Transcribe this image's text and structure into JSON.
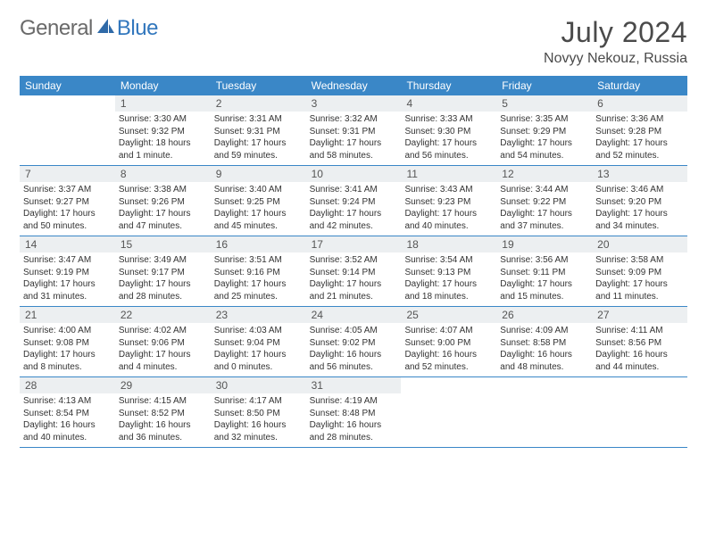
{
  "logo": {
    "gray": "General",
    "blue": "Blue"
  },
  "title": "July 2024",
  "location": "Novyy Nekouz, Russia",
  "colors": {
    "header_bg": "#3a87c7",
    "header_text": "#ffffff",
    "daynum_bg": "#eceff1",
    "border": "#3a87c7",
    "logo_gray": "#6a6a6a",
    "logo_blue": "#3277bd"
  },
  "day_headers": [
    "Sunday",
    "Monday",
    "Tuesday",
    "Wednesday",
    "Thursday",
    "Friday",
    "Saturday"
  ],
  "weeks": [
    [
      {
        "n": "",
        "sr": "",
        "ss": "",
        "dl": ""
      },
      {
        "n": "1",
        "sr": "Sunrise: 3:30 AM",
        "ss": "Sunset: 9:32 PM",
        "dl": "Daylight: 18 hours and 1 minute."
      },
      {
        "n": "2",
        "sr": "Sunrise: 3:31 AM",
        "ss": "Sunset: 9:31 PM",
        "dl": "Daylight: 17 hours and 59 minutes."
      },
      {
        "n": "3",
        "sr": "Sunrise: 3:32 AM",
        "ss": "Sunset: 9:31 PM",
        "dl": "Daylight: 17 hours and 58 minutes."
      },
      {
        "n": "4",
        "sr": "Sunrise: 3:33 AM",
        "ss": "Sunset: 9:30 PM",
        "dl": "Daylight: 17 hours and 56 minutes."
      },
      {
        "n": "5",
        "sr": "Sunrise: 3:35 AM",
        "ss": "Sunset: 9:29 PM",
        "dl": "Daylight: 17 hours and 54 minutes."
      },
      {
        "n": "6",
        "sr": "Sunrise: 3:36 AM",
        "ss": "Sunset: 9:28 PM",
        "dl": "Daylight: 17 hours and 52 minutes."
      }
    ],
    [
      {
        "n": "7",
        "sr": "Sunrise: 3:37 AM",
        "ss": "Sunset: 9:27 PM",
        "dl": "Daylight: 17 hours and 50 minutes."
      },
      {
        "n": "8",
        "sr": "Sunrise: 3:38 AM",
        "ss": "Sunset: 9:26 PM",
        "dl": "Daylight: 17 hours and 47 minutes."
      },
      {
        "n": "9",
        "sr": "Sunrise: 3:40 AM",
        "ss": "Sunset: 9:25 PM",
        "dl": "Daylight: 17 hours and 45 minutes."
      },
      {
        "n": "10",
        "sr": "Sunrise: 3:41 AM",
        "ss": "Sunset: 9:24 PM",
        "dl": "Daylight: 17 hours and 42 minutes."
      },
      {
        "n": "11",
        "sr": "Sunrise: 3:43 AM",
        "ss": "Sunset: 9:23 PM",
        "dl": "Daylight: 17 hours and 40 minutes."
      },
      {
        "n": "12",
        "sr": "Sunrise: 3:44 AM",
        "ss": "Sunset: 9:22 PM",
        "dl": "Daylight: 17 hours and 37 minutes."
      },
      {
        "n": "13",
        "sr": "Sunrise: 3:46 AM",
        "ss": "Sunset: 9:20 PM",
        "dl": "Daylight: 17 hours and 34 minutes."
      }
    ],
    [
      {
        "n": "14",
        "sr": "Sunrise: 3:47 AM",
        "ss": "Sunset: 9:19 PM",
        "dl": "Daylight: 17 hours and 31 minutes."
      },
      {
        "n": "15",
        "sr": "Sunrise: 3:49 AM",
        "ss": "Sunset: 9:17 PM",
        "dl": "Daylight: 17 hours and 28 minutes."
      },
      {
        "n": "16",
        "sr": "Sunrise: 3:51 AM",
        "ss": "Sunset: 9:16 PM",
        "dl": "Daylight: 17 hours and 25 minutes."
      },
      {
        "n": "17",
        "sr": "Sunrise: 3:52 AM",
        "ss": "Sunset: 9:14 PM",
        "dl": "Daylight: 17 hours and 21 minutes."
      },
      {
        "n": "18",
        "sr": "Sunrise: 3:54 AM",
        "ss": "Sunset: 9:13 PM",
        "dl": "Daylight: 17 hours and 18 minutes."
      },
      {
        "n": "19",
        "sr": "Sunrise: 3:56 AM",
        "ss": "Sunset: 9:11 PM",
        "dl": "Daylight: 17 hours and 15 minutes."
      },
      {
        "n": "20",
        "sr": "Sunrise: 3:58 AM",
        "ss": "Sunset: 9:09 PM",
        "dl": "Daylight: 17 hours and 11 minutes."
      }
    ],
    [
      {
        "n": "21",
        "sr": "Sunrise: 4:00 AM",
        "ss": "Sunset: 9:08 PM",
        "dl": "Daylight: 17 hours and 8 minutes."
      },
      {
        "n": "22",
        "sr": "Sunrise: 4:02 AM",
        "ss": "Sunset: 9:06 PM",
        "dl": "Daylight: 17 hours and 4 minutes."
      },
      {
        "n": "23",
        "sr": "Sunrise: 4:03 AM",
        "ss": "Sunset: 9:04 PM",
        "dl": "Daylight: 17 hours and 0 minutes."
      },
      {
        "n": "24",
        "sr": "Sunrise: 4:05 AM",
        "ss": "Sunset: 9:02 PM",
        "dl": "Daylight: 16 hours and 56 minutes."
      },
      {
        "n": "25",
        "sr": "Sunrise: 4:07 AM",
        "ss": "Sunset: 9:00 PM",
        "dl": "Daylight: 16 hours and 52 minutes."
      },
      {
        "n": "26",
        "sr": "Sunrise: 4:09 AM",
        "ss": "Sunset: 8:58 PM",
        "dl": "Daylight: 16 hours and 48 minutes."
      },
      {
        "n": "27",
        "sr": "Sunrise: 4:11 AM",
        "ss": "Sunset: 8:56 PM",
        "dl": "Daylight: 16 hours and 44 minutes."
      }
    ],
    [
      {
        "n": "28",
        "sr": "Sunrise: 4:13 AM",
        "ss": "Sunset: 8:54 PM",
        "dl": "Daylight: 16 hours and 40 minutes."
      },
      {
        "n": "29",
        "sr": "Sunrise: 4:15 AM",
        "ss": "Sunset: 8:52 PM",
        "dl": "Daylight: 16 hours and 36 minutes."
      },
      {
        "n": "30",
        "sr": "Sunrise: 4:17 AM",
        "ss": "Sunset: 8:50 PM",
        "dl": "Daylight: 16 hours and 32 minutes."
      },
      {
        "n": "31",
        "sr": "Sunrise: 4:19 AM",
        "ss": "Sunset: 8:48 PM",
        "dl": "Daylight: 16 hours and 28 minutes."
      },
      {
        "n": "",
        "sr": "",
        "ss": "",
        "dl": ""
      },
      {
        "n": "",
        "sr": "",
        "ss": "",
        "dl": ""
      },
      {
        "n": "",
        "sr": "",
        "ss": "",
        "dl": ""
      }
    ]
  ]
}
